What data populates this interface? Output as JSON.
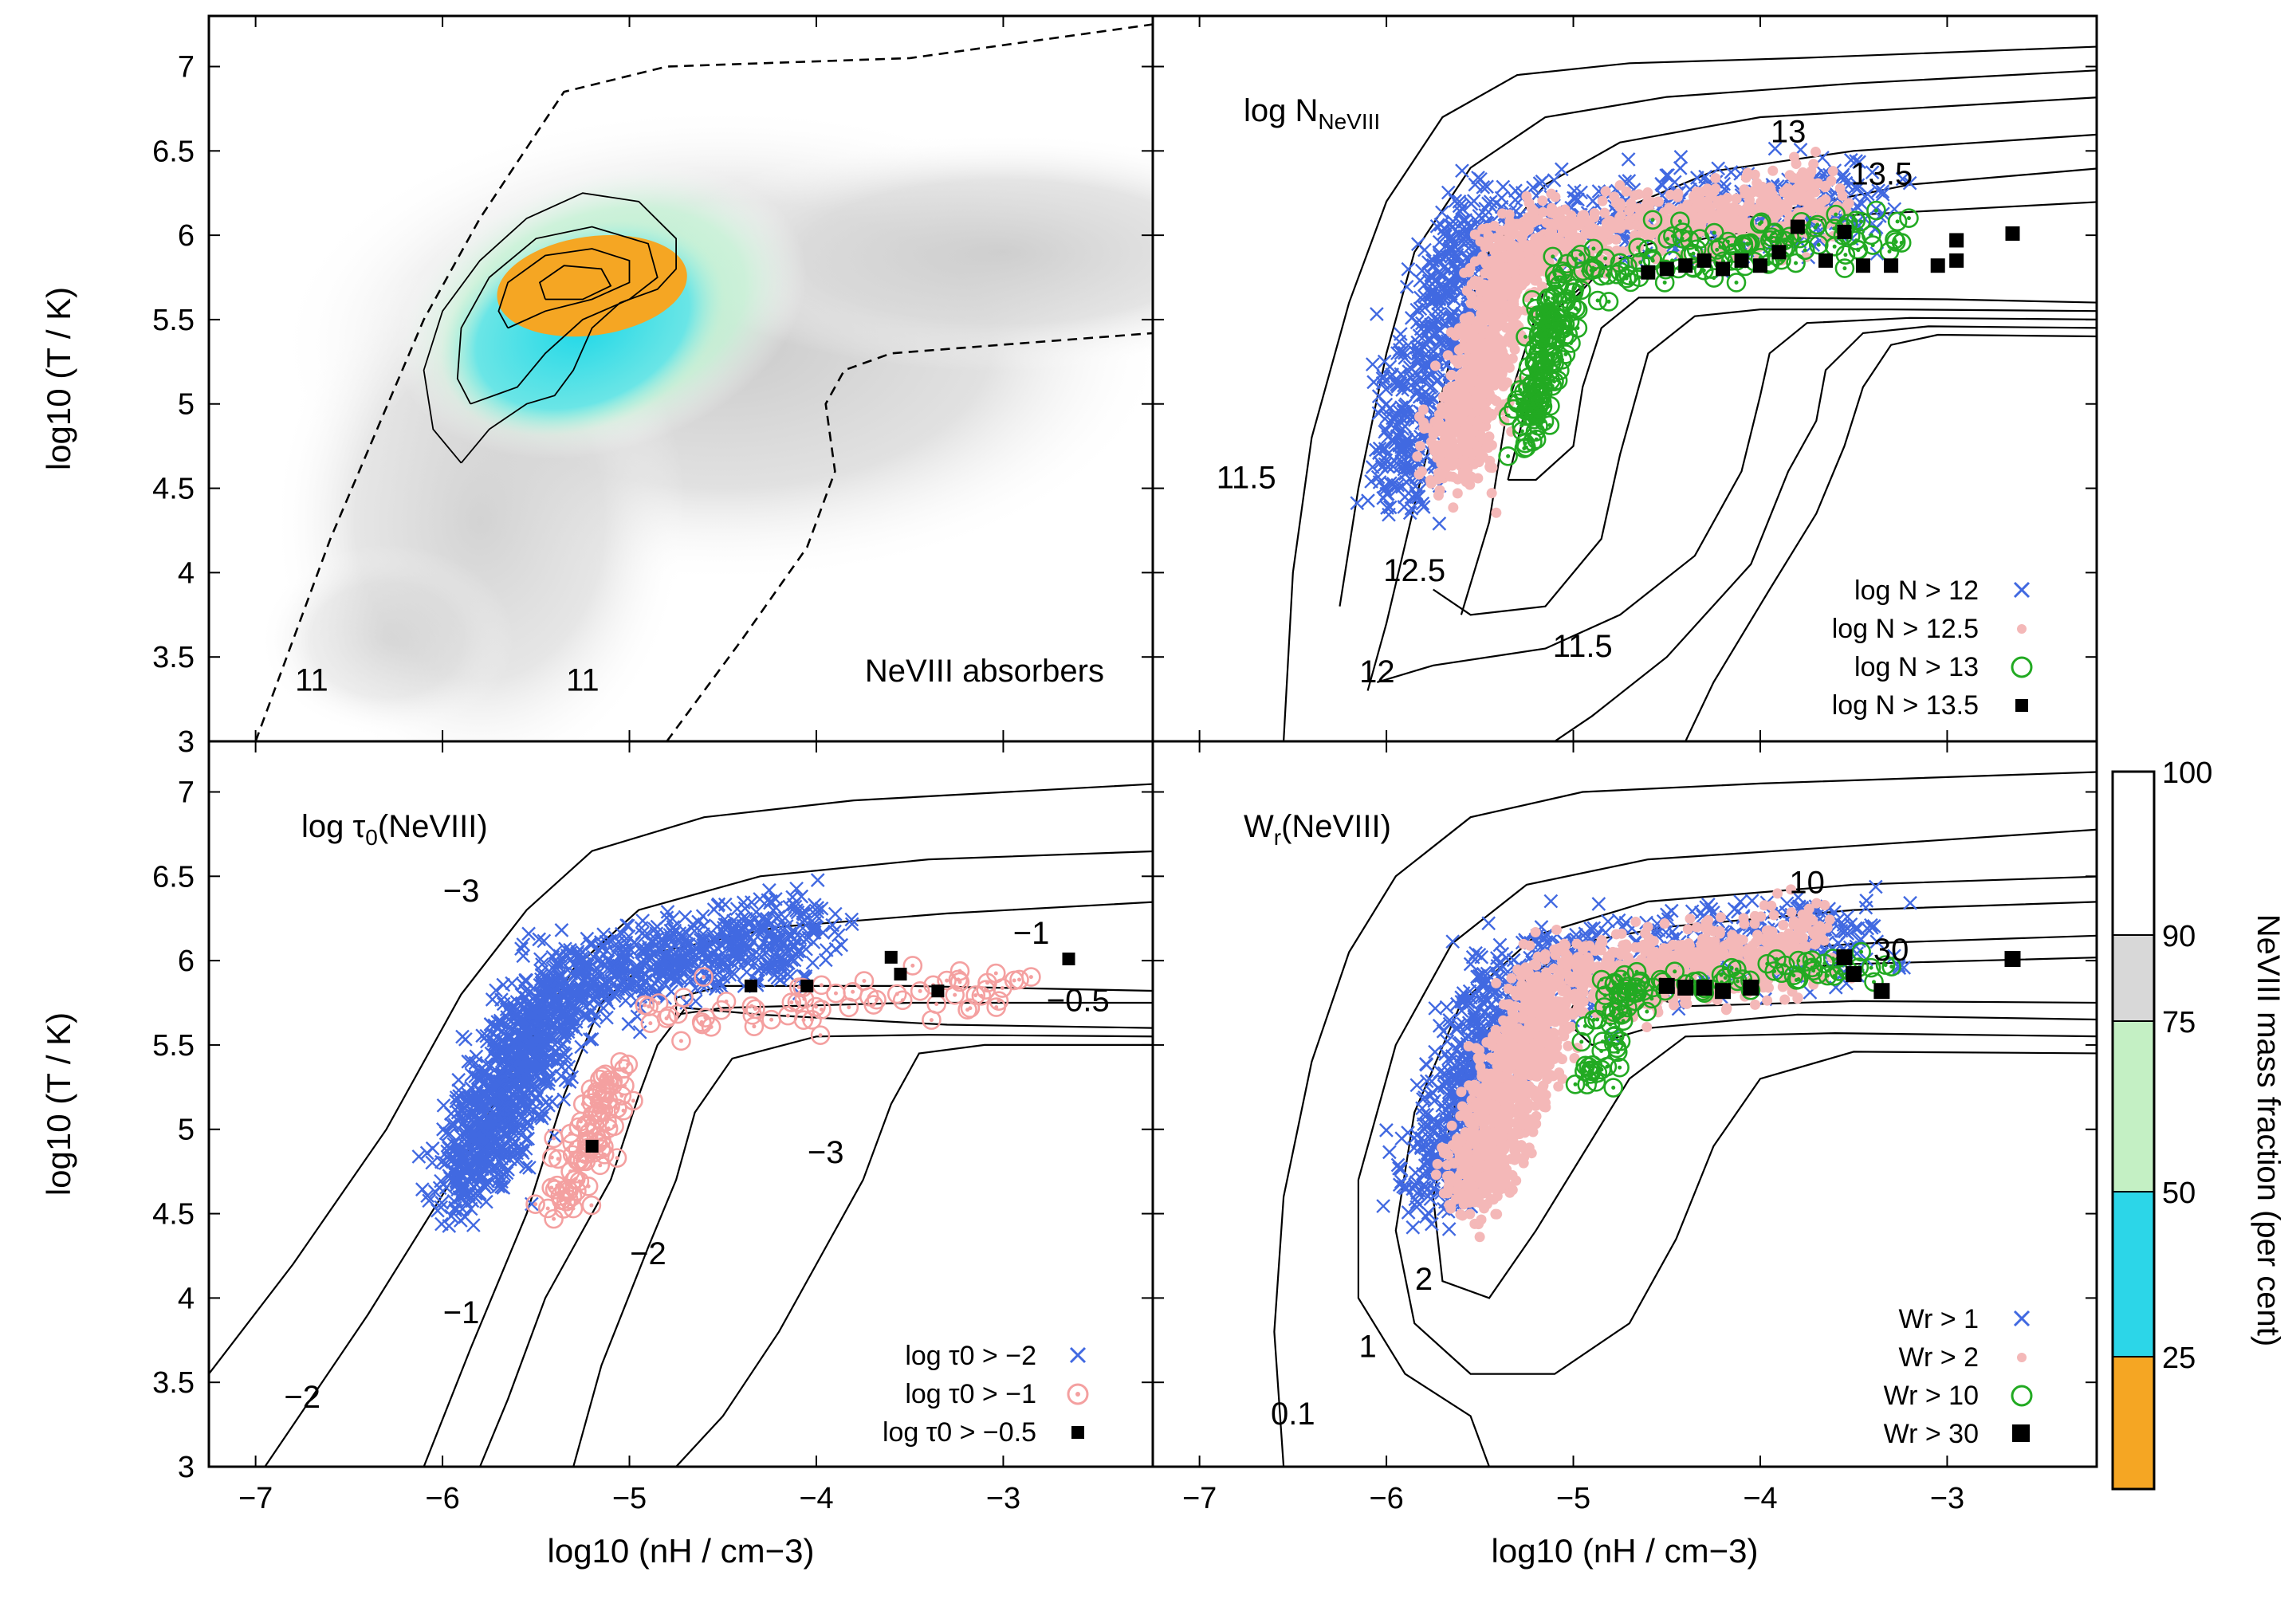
{
  "figure": {
    "x_axis_label": "log10 (nH / cm−3)",
    "y_axis_label": "log10 (T / K)",
    "colorbar_label": "NeVIII mass fraction (per cent)"
  },
  "chart_data": [
    {
      "panel": "top-left",
      "type": "heatmap",
      "title": "NeVIII absorbers",
      "xlim": [
        -7.25,
        -2.2
      ],
      "ylim": [
        3,
        7.3
      ],
      "xticks": [
        -7,
        -6,
        -5,
        -4,
        -3
      ],
      "yticks": [
        3,
        3.5,
        4,
        4.5,
        5,
        5.5,
        6,
        6.5,
        7
      ],
      "ytick_labels": [
        "3",
        "3.5",
        "4",
        "4.5",
        "5",
        "5.5",
        "6",
        "6.5",
        "7"
      ],
      "ylabel": "log10 (T / K)",
      "peak": {
        "x": -5.2,
        "y": 5.7
      },
      "dashed_contours": [
        {
          "label": "11",
          "points": [
            [
              -7.0,
              3.0
            ],
            [
              -6.6,
              4.2
            ],
            [
              -6.1,
              5.5
            ],
            [
              -5.8,
              6.1
            ],
            [
              -5.5,
              6.6
            ],
            [
              -5.35,
              6.85
            ],
            [
              -4.8,
              7.0
            ],
            [
              -3.5,
              7.05
            ],
            [
              -2.2,
              7.25
            ]
          ]
        },
        {
          "label": "11",
          "points": [
            [
              -4.8,
              3.0
            ],
            [
              -4.4,
              3.6
            ],
            [
              -4.05,
              4.15
            ],
            [
              -3.9,
              4.6
            ],
            [
              -3.95,
              5.0
            ],
            [
              -3.85,
              5.2
            ],
            [
              -3.6,
              5.3
            ],
            [
              -2.2,
              5.42
            ]
          ]
        }
      ],
      "contour_labels": [
        {
          "text": "11",
          "x": -6.7,
          "y": 3.3
        },
        {
          "text": "11",
          "x": -5.25,
          "y": 3.3
        }
      ]
    },
    {
      "panel": "top-right",
      "type": "scatter",
      "title": "log NNeVIII",
      "title_main": "log N",
      "title_sub": "NeVIII",
      "xlim": [
        -7.25,
        -2.2
      ],
      "ylim": [
        3,
        7.3
      ],
      "contour_labels": [
        {
          "text": "11.5",
          "x": -6.75,
          "y": 4.5
        },
        {
          "text": "12.5",
          "x": -5.85,
          "y": 3.95
        },
        {
          "text": "12",
          "x": -6.05,
          "y": 3.35
        },
        {
          "text": "11.5",
          "x": -4.95,
          "y": 3.5
        },
        {
          "text": "13",
          "x": -3.85,
          "y": 6.55
        },
        {
          "text": "13.5",
          "x": -3.35,
          "y": 6.3
        }
      ],
      "series": [
        {
          "name": "log N > 12",
          "marker": "x",
          "color": "#4169e1"
        },
        {
          "name": "log N > 12.5",
          "marker": "dot",
          "color": "#f4b8b8"
        },
        {
          "name": "log N > 13",
          "marker": "ring",
          "color": "#22aa22"
        },
        {
          "name": "log N > 13.5",
          "marker": "square",
          "color": "#000000"
        }
      ],
      "squares": [
        [
          -4.6,
          5.78
        ],
        [
          -4.5,
          5.8
        ],
        [
          -4.4,
          5.82
        ],
        [
          -4.3,
          5.85
        ],
        [
          -4.2,
          5.8
        ],
        [
          -4.1,
          5.85
        ],
        [
          -4.0,
          5.82
        ],
        [
          -3.9,
          5.9
        ],
        [
          -3.8,
          6.05
        ],
        [
          -3.65,
          5.85
        ],
        [
          -3.55,
          6.02
        ],
        [
          -3.45,
          5.82
        ],
        [
          -3.3,
          5.82
        ],
        [
          -3.05,
          5.82
        ],
        [
          -2.95,
          5.85
        ],
        [
          -2.95,
          5.97
        ],
        [
          -2.65,
          6.01
        ]
      ]
    },
    {
      "panel": "bottom-left",
      "type": "scatter",
      "title": "log τ0(NeVIII)",
      "title_main": "log τ",
      "title_sub": "0",
      "title_end": "(NeVIII)",
      "xlim": [
        -7.25,
        -2.2
      ],
      "ylim": [
        3,
        7.3
      ],
      "xticks": [
        -7,
        -6,
        -5,
        -4,
        -3
      ],
      "xtick_labels": [
        "−7",
        "−6",
        "−5",
        "−4",
        "−3"
      ],
      "yticks": [
        3,
        3.5,
        4,
        4.5,
        5,
        5.5,
        6,
        6.5,
        7
      ],
      "ytick_labels": [
        "3",
        "3.5",
        "4",
        "4.5",
        "5",
        "5.5",
        "6",
        "6.5",
        "7"
      ],
      "xlabel": "log10 (nH / cm−3)",
      "ylabel": "log10 (T / K)",
      "contour_labels": [
        {
          "text": "−3",
          "x": -5.9,
          "y": 6.35
        },
        {
          "text": "−1",
          "x": -2.85,
          "y": 6.1
        },
        {
          "text": "−0.5",
          "x": -2.6,
          "y": 5.7
        },
        {
          "text": "−3",
          "x": -3.95,
          "y": 4.8
        },
        {
          "text": "−2",
          "x": -4.9,
          "y": 4.2
        },
        {
          "text": "−1",
          "x": -5.9,
          "y": 3.85
        },
        {
          "text": "−2",
          "x": -6.75,
          "y": 3.35
        }
      ],
      "series": [
        {
          "name": "log τ0 > −2",
          "marker": "x",
          "color": "#4169e1"
        },
        {
          "name": "log τ0 > −1",
          "marker": "ring",
          "color": "#f4a0a0"
        },
        {
          "name": "log τ0 > −0.5",
          "marker": "square",
          "color": "#000000"
        }
      ],
      "squares": [
        [
          -5.2,
          4.9
        ],
        [
          -4.35,
          5.85
        ],
        [
          -4.05,
          5.85
        ],
        [
          -3.6,
          6.02
        ],
        [
          -3.55,
          5.92
        ],
        [
          -3.35,
          5.82
        ],
        [
          -2.65,
          6.01
        ]
      ]
    },
    {
      "panel": "bottom-right",
      "type": "scatter",
      "title": "Wr(NeVIII)",
      "title_main": "W",
      "title_sub": "r",
      "title_end": "(NeVIII)",
      "xlim": [
        -7.25,
        -2.2
      ],
      "ylim": [
        3,
        7.3
      ],
      "xticks": [
        -7,
        -6,
        -5,
        -4,
        -3
      ],
      "xtick_labels": [
        "−7",
        "−6",
        "−5",
        "−4",
        "−3"
      ],
      "xlabel": "log10 (nH / cm−3)",
      "contour_labels": [
        {
          "text": "10",
          "x": -3.75,
          "y": 6.4
        },
        {
          "text": "30",
          "x": -3.3,
          "y": 6.0
        },
        {
          "text": "2",
          "x": -5.8,
          "y": 4.05
        },
        {
          "text": "1",
          "x": -6.1,
          "y": 3.65
        },
        {
          "text": "0.1",
          "x": -6.5,
          "y": 3.25
        }
      ],
      "series": [
        {
          "name": "Wr > 1",
          "marker": "x",
          "color": "#4169e1"
        },
        {
          "name": "Wr > 2",
          "marker": "dot",
          "color": "#f4b8b8"
        },
        {
          "name": "Wr > 10",
          "marker": "ring",
          "color": "#22aa22"
        },
        {
          "name": "Wr > 30",
          "marker": "square",
          "color": "#000000"
        }
      ],
      "squares": [
        [
          -4.5,
          5.85
        ],
        [
          -4.4,
          5.84
        ],
        [
          -4.3,
          5.84
        ],
        [
          -4.2,
          5.82
        ],
        [
          -4.05,
          5.84
        ],
        [
          -3.55,
          6.02
        ],
        [
          -3.5,
          5.92
        ],
        [
          -3.35,
          5.82
        ],
        [
          -2.65,
          6.01
        ]
      ]
    }
  ],
  "colorbar": {
    "ticks": [
      "100",
      "90",
      "75",
      "50",
      "25"
    ],
    "segments": [
      {
        "range": "90-100",
        "color": "#ffffff"
      },
      {
        "range": "75-90",
        "color": "#d8d8d8"
      },
      {
        "range": "50-75",
        "color": "#c4f0c4"
      },
      {
        "range": "25-50",
        "color": "#2cd6e8"
      },
      {
        "range": "0-25",
        "color": "#f5a623"
      }
    ]
  },
  "legends": {
    "top_right": [
      "log N > 12",
      "log N > 12.5",
      "log N > 13",
      "log N > 13.5"
    ],
    "bottom_left": [
      "log τ0 > −2",
      "log τ0 > −1",
      "log τ0 > −0.5"
    ],
    "bottom_right": [
      "Wr > 1",
      "Wr > 2",
      "Wr > 10",
      "Wr > 30"
    ]
  }
}
